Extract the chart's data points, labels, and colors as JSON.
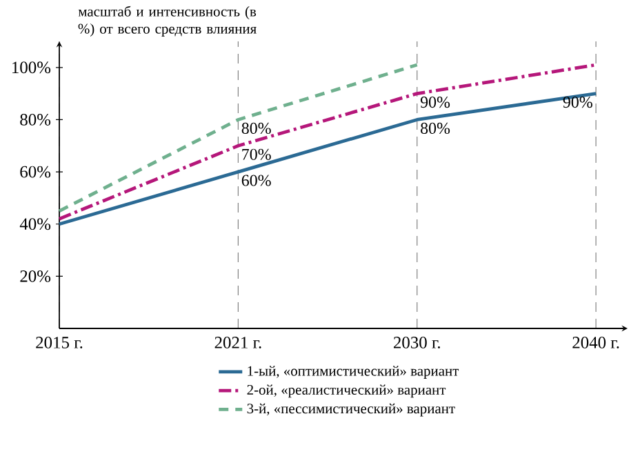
{
  "chart_data": {
    "type": "line",
    "ylabel": "масштаб и интенсивность (в %) от всего средств влияния",
    "categories": [
      "2015 г.",
      "2021 г.",
      "2030 г.",
      "2040 г."
    ],
    "series": [
      {
        "name": "1-ый, «оптимистический» вариант",
        "color": "#2b6a94",
        "line_style": "solid",
        "values": [
          40,
          60,
          80,
          90
        ],
        "value_labels": [
          null,
          "60%",
          "80%",
          "90%"
        ]
      },
      {
        "name": "2-ой, «реалистический» вариант",
        "color": "#b5177a",
        "line_style": "dashdot",
        "values": [
          42,
          70,
          90,
          101
        ],
        "value_labels": [
          null,
          "70%",
          "90%",
          null
        ]
      },
      {
        "name": "3-й,  «пессимистический» вариант",
        "color": "#6fb08e",
        "line_style": "dashed",
        "values": [
          45,
          80,
          101,
          null
        ],
        "value_labels": [
          null,
          "80%",
          null,
          null
        ]
      }
    ],
    "ylim": [
      0,
      110
    ],
    "yticks": [
      {
        "value": 20,
        "label": "20%"
      },
      {
        "value": 40,
        "label": "40%"
      },
      {
        "value": 60,
        "label": "60%"
      },
      {
        "value": 80,
        "label": "80%"
      },
      {
        "value": 100,
        "label": "100%"
      }
    ],
    "grid": "x",
    "legend": "bottom",
    "marker": "none"
  }
}
